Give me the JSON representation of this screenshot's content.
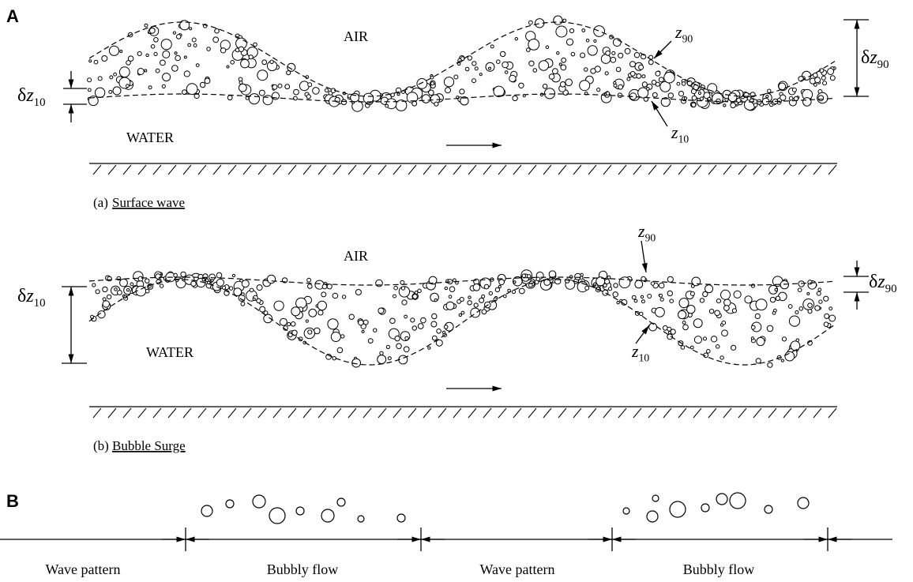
{
  "panel_a": {
    "label": "A",
    "air": "AIR",
    "water": "WATER",
    "z90": {
      "var": "z",
      "sub": "90"
    },
    "z10": {
      "var": "z",
      "sub": "10"
    },
    "dz90": {
      "delta": "δ",
      "var": "z",
      "sub": "90"
    },
    "dz10": {
      "delta": "δ",
      "var": "z",
      "sub": "10"
    },
    "caption": {
      "tag": "(a)",
      "text": "Surface wave"
    }
  },
  "panel_b": {
    "air": "AIR",
    "water": "WATER",
    "z90": {
      "var": "z",
      "sub": "90"
    },
    "z10": {
      "var": "z",
      "sub": "10"
    },
    "dz90": {
      "delta": "δ",
      "var": "z",
      "sub": "90"
    },
    "dz10": {
      "delta": "δ",
      "var": "z",
      "sub": "10"
    },
    "caption": {
      "tag": "(b)",
      "text": "Bubble Surge"
    }
  },
  "panel_c": {
    "label": "B",
    "segments": [
      "Wave pattern",
      "Bubbly flow",
      "Wave pattern",
      "Bubbly flow"
    ]
  }
}
